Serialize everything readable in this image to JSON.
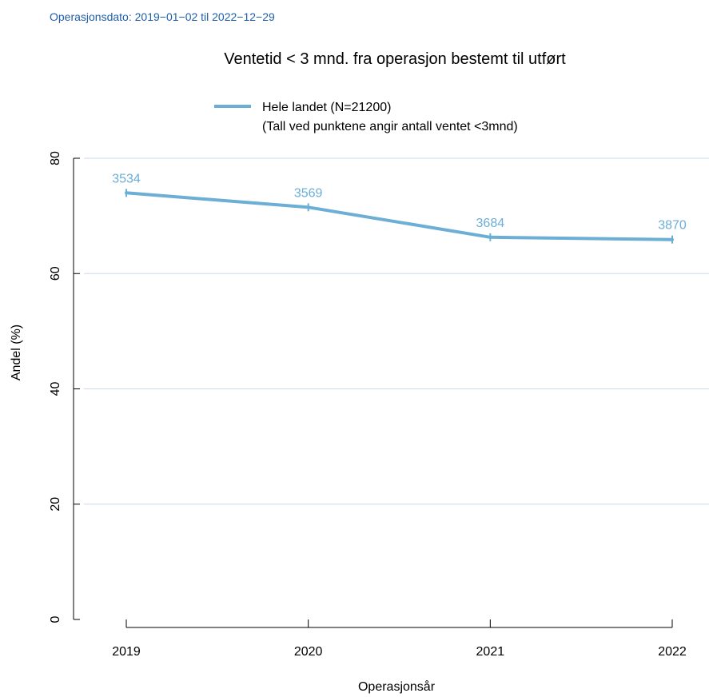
{
  "subtitle": "Operasjonsdato: 2019−01−02 til 2022−12−29",
  "colors": {
    "subtitle": "#1f5ea8",
    "series": "#6baed6",
    "grid": "#c6dbef",
    "axis": "#000000"
  },
  "chart_data": {
    "type": "line",
    "title": "Ventetid < 3 mnd. fra operasjon bestemt til utført",
    "xlabel": "Operasjonsår",
    "ylabel": "Andel (%)",
    "categories": [
      "2019",
      "2020",
      "2021",
      "2022"
    ],
    "ylim": [
      0,
      80
    ],
    "yticks": [
      "0",
      "20",
      "40",
      "60",
      "80"
    ],
    "grid": "horizontal",
    "legend": {
      "placement": "top",
      "entries": [
        "Hele landet (N=21200)"
      ],
      "note": "(Tall ved punktene angir antall ventet <3mnd)"
    },
    "series": [
      {
        "name": "Hele landet (N=21200)",
        "values": [
          74.0,
          71.5,
          66.3,
          65.9
        ],
        "labels": [
          "3534",
          "3569",
          "3684",
          "3870"
        ]
      }
    ]
  }
}
